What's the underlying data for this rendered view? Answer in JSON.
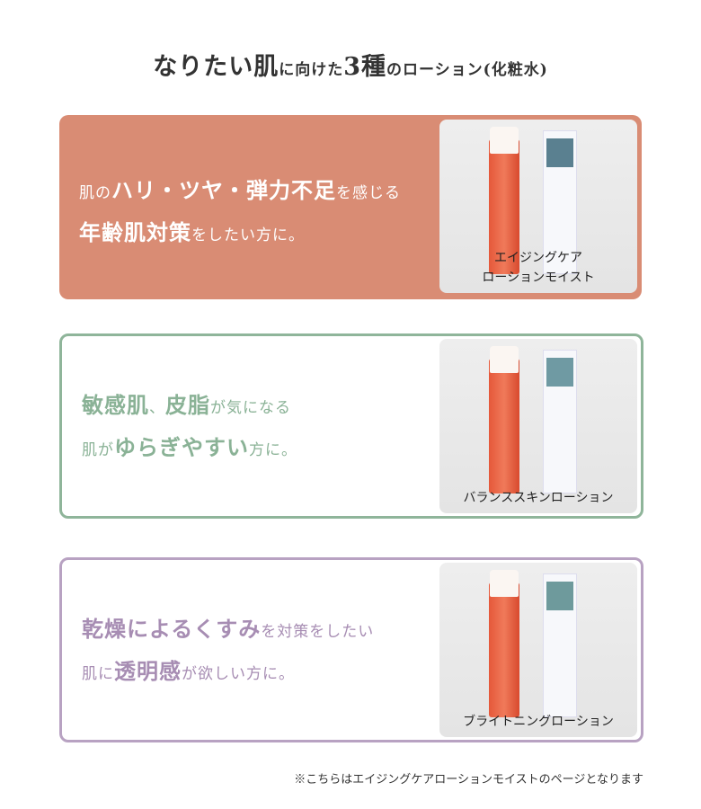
{
  "title": [
    {
      "t": "なりたい肌",
      "b": true
    },
    {
      "t": "に向けた",
      "b": false
    },
    {
      "t": "3種",
      "b": true
    },
    {
      "t": "のローション(化粧水)",
      "b": false
    }
  ],
  "colors": {
    "aging": "#d98c74",
    "balance": "#8fb59a",
    "brightening": "#b8a2c2"
  },
  "cards": [
    {
      "lines": [
        [
          {
            "t": "肌の",
            "b": false
          },
          {
            "t": "ハリ・ツヤ・弾力不足",
            "b": true
          },
          {
            "t": "を感じる",
            "b": false
          }
        ],
        [
          {
            "t": "年齢肌対策",
            "b": true
          },
          {
            "t": "をしたい方に。",
            "b": false
          }
        ]
      ],
      "product_lines": [
        "エイジングケア",
        "ローションモイスト"
      ]
    },
    {
      "lines": [
        [
          {
            "t": "敏感肌",
            "b": true
          },
          {
            "t": "、",
            "b": false
          },
          {
            "t": "皮脂",
            "b": true
          },
          {
            "t": "が気になる",
            "b": false
          }
        ],
        [
          {
            "t": "肌が",
            "b": false
          },
          {
            "t": "ゆらぎやすい",
            "b": true
          },
          {
            "t": "方に。",
            "b": false
          }
        ]
      ],
      "product_lines": [
        "バランススキンローション"
      ]
    },
    {
      "lines": [
        [
          {
            "t": "乾燥によるくすみ",
            "b": true
          },
          {
            "t": "を対策をしたい",
            "b": false
          }
        ],
        [
          {
            "t": "肌に",
            "b": false
          },
          {
            "t": "透明感",
            "b": true
          },
          {
            "t": "が欲しい方に。",
            "b": false
          }
        ]
      ],
      "product_lines": [
        "ブライトニングローション"
      ]
    }
  ],
  "note": "※こちらはエイジングケアローションモイストのページとなります"
}
